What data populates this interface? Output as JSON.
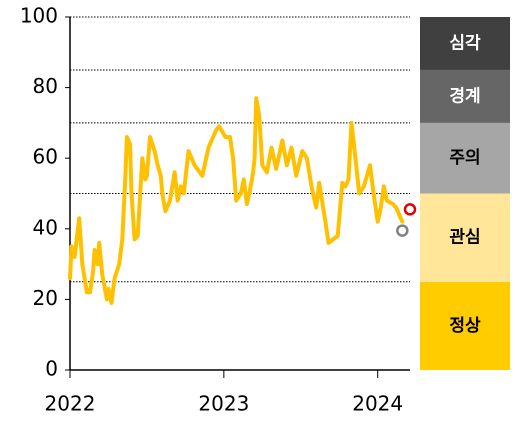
{
  "chart_data": {
    "type": "line",
    "xlim": [
      2022,
      2024.21
    ],
    "xticks": [
      2022,
      2023,
      2024
    ],
    "ylim": [
      0,
      100
    ],
    "yticks": [
      0,
      20,
      40,
      60,
      80,
      100
    ],
    "series": [
      {
        "color": "#ffc000",
        "x": [
          2022.0,
          2022.01,
          2022.03,
          2022.06,
          2022.08,
          2022.11,
          2022.13,
          2022.15,
          2022.16,
          2022.18,
          2022.19,
          2022.21,
          2022.24,
          2022.25,
          2022.27,
          2022.29,
          2022.32,
          2022.34,
          2022.36,
          2022.37,
          2022.39,
          2022.4,
          2022.42,
          2022.44,
          2022.47,
          2022.49,
          2022.5,
          2022.52,
          2022.55,
          2022.57,
          2022.59,
          2022.6,
          2022.62,
          2022.65,
          2022.68,
          2022.7,
          2022.72,
          2022.74,
          2022.77,
          2022.81,
          2022.86,
          2022.9,
          2022.95,
          2022.97,
          2023.01,
          2023.04,
          2023.06,
          2023.08,
          2023.11,
          2023.13,
          2023.15,
          2023.17,
          2023.19,
          2023.2,
          2023.21,
          2023.23,
          2023.25,
          2023.28,
          2023.31,
          2023.34,
          2023.38,
          2023.41,
          2023.44,
          2023.47,
          2023.51,
          2023.54,
          2023.57,
          2023.6,
          2023.62,
          2023.66,
          2023.68,
          2023.71,
          2023.74,
          2023.77,
          2023.79,
          2023.81,
          2023.83,
          2023.86,
          2023.88,
          2023.91,
          2023.95,
          2023.97,
          2024.0,
          2024.02,
          2024.04,
          2024.06,
          2024.1,
          2024.12,
          2024.14,
          2024.16
        ],
        "values": [
          26,
          35,
          32,
          43,
          30,
          22,
          22,
          28,
          34,
          30,
          36,
          27,
          20,
          23,
          19,
          26,
          30,
          37,
          55,
          66,
          64,
          50,
          37,
          38,
          60,
          54,
          55,
          66,
          62,
          58,
          55,
          50,
          45,
          48,
          56,
          48,
          52,
          50,
          62,
          58,
          55,
          63,
          68,
          69,
          66,
          66,
          60,
          48,
          50,
          54,
          47,
          51,
          56,
          60,
          77,
          72,
          58,
          56,
          63,
          57,
          65,
          58,
          63,
          55,
          62,
          60,
          52,
          46,
          53,
          42,
          36,
          37,
          38,
          53,
          52,
          54,
          70,
          58,
          50,
          52,
          58,
          51,
          42,
          46,
          52,
          48,
          47,
          46,
          44,
          42
        ]
      }
    ],
    "markers": [
      {
        "x": 2024.21,
        "y": 45.5,
        "color": "#e00000"
      },
      {
        "x": 2024.16,
        "y": 39.5,
        "color": "#808080"
      }
    ],
    "bands": [
      {
        "label": "정상",
        "from": 0,
        "to": 25,
        "color": "#ffcc00",
        "text_color": "#000000"
      },
      {
        "label": "관심",
        "from": 25,
        "to": 50,
        "color": "#ffe699",
        "text_color": "#000000"
      },
      {
        "label": "주의",
        "from": 50,
        "to": 70,
        "color": "#a6a6a6",
        "text_color": "#000000"
      },
      {
        "label": "경계",
        "from": 70,
        "to": 85,
        "color": "#666666",
        "text_color": "#ffffff"
      },
      {
        "label": "심각",
        "from": 85,
        "to": 100,
        "color": "#404040",
        "text_color": "#ffffff"
      }
    ]
  }
}
